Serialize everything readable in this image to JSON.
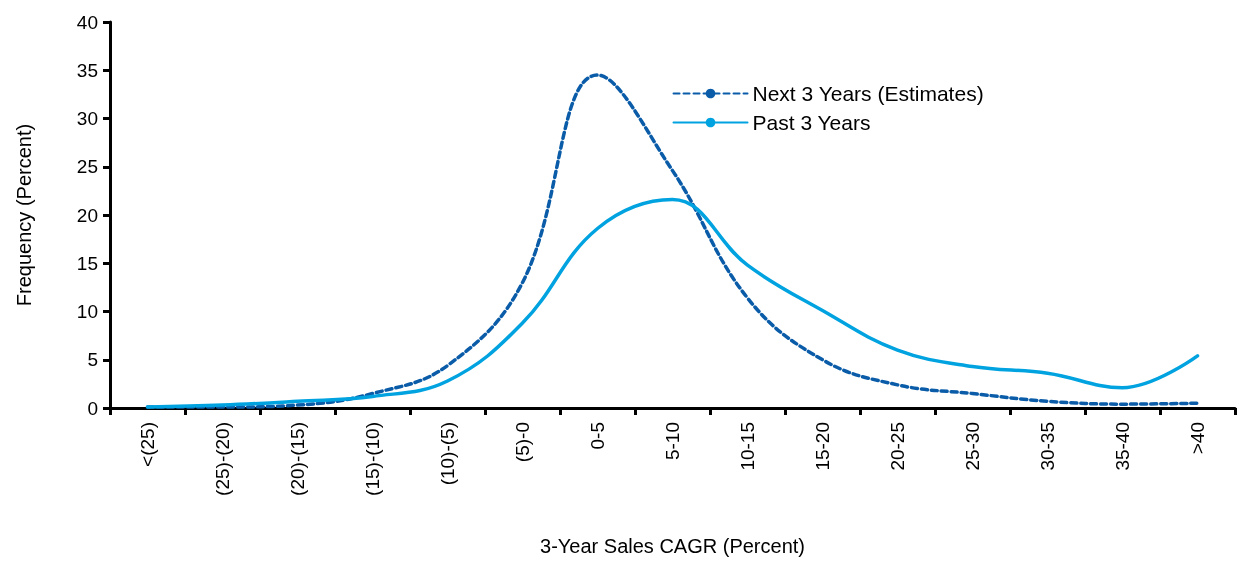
{
  "chart_data": {
    "type": "line",
    "xlabel": "3-Year Sales CAGR (Percent)",
    "ylabel": "Frequency (Percent)",
    "categories": [
      "<(25)",
      "(25)-(20)",
      "(20)-(15)",
      "(15)-(10)",
      "(10)-(5)",
      "(5)-0",
      "0-5",
      "5-10",
      "10-15",
      "15-20",
      "20-25",
      "25-30",
      "30-35",
      "35-40",
      ">40"
    ],
    "series": [
      {
        "name": "Next 3 Years (Estimates)",
        "color": "#0a5ca8",
        "line_style": "dashed",
        "values": [
          0.1,
          0.1,
          0.3,
          1.5,
          4.4,
          13,
          34.5,
          24.6,
          11.4,
          5,
          2.4,
          1.5,
          0.7,
          0.4,
          0.5
        ]
      },
      {
        "name": "Past 3 Years",
        "color": "#00a3e0",
        "line_style": "solid",
        "values": [
          0.1,
          0.3,
          0.7,
          1.2,
          2.8,
          8.8,
          18.6,
          21.6,
          14.8,
          10.1,
          6,
          4.3,
          3.6,
          2.1,
          5.4
        ]
      }
    ],
    "ylim": [
      0,
      40
    ],
    "yticks": [
      0,
      5,
      10,
      15,
      20,
      25,
      30,
      35,
      40
    ],
    "grid": false,
    "legend": "top right",
    "marker": "none"
  }
}
